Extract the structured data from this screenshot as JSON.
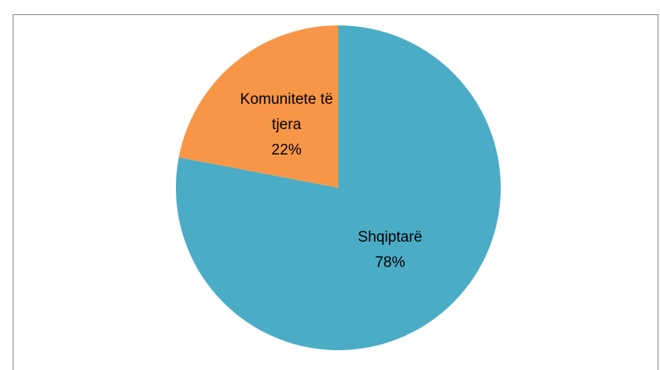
{
  "chart_data": {
    "type": "pie",
    "categories": [
      "Shqiptarë",
      "Komunitete të tjera"
    ],
    "values": [
      78,
      22
    ],
    "value_labels": [
      "78%",
      "22%"
    ],
    "colors": [
      "#4bacc6",
      "#f79646"
    ]
  }
}
